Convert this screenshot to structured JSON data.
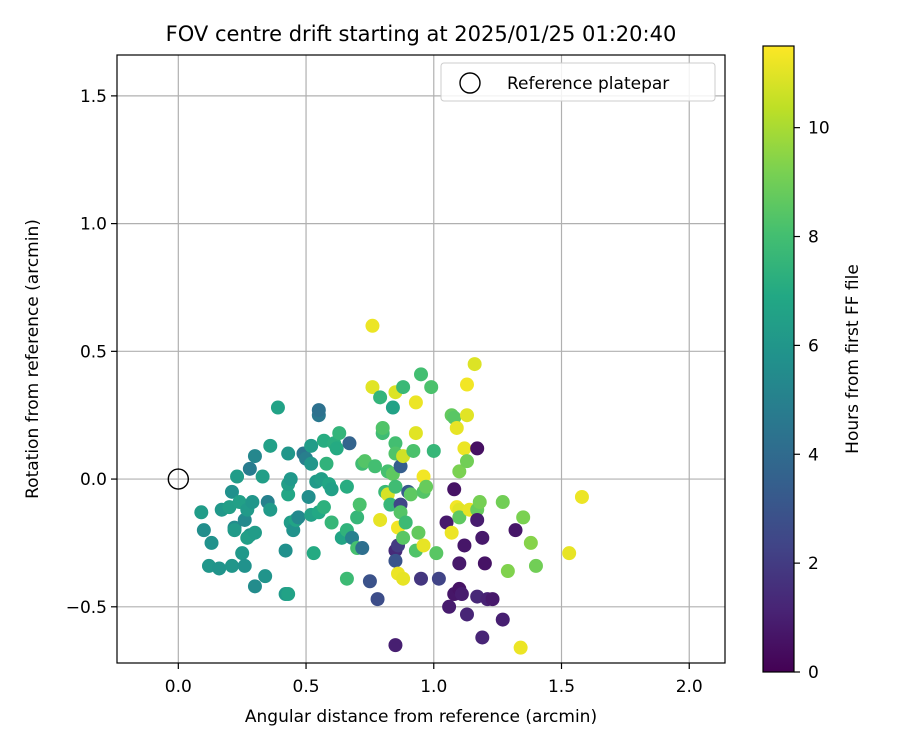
{
  "chart_data": {
    "type": "scatter",
    "title": "FOV centre drift starting at 2025/01/25 01:20:40",
    "xlabel": "Angular distance from reference (arcmin)",
    "ylabel": "Rotation from reference (arcmin)",
    "xlim": [
      -0.24,
      2.14
    ],
    "ylim": [
      -0.72,
      1.66
    ],
    "xticks": [
      0.0,
      0.5,
      1.0,
      1.5,
      2.0
    ],
    "xtick_labels": [
      "0.0",
      "0.5",
      "1.0",
      "1.5",
      "2.0"
    ],
    "yticks": [
      -0.5,
      0.0,
      0.5,
      1.0,
      1.5
    ],
    "ytick_labels": [
      "−0.5",
      "0.0",
      "0.5",
      "1.0",
      "1.5"
    ],
    "grid": true,
    "legend": {
      "placement": "top-right",
      "entries": [
        {
          "label": "Reference platepar",
          "marker": "open-circle"
        }
      ]
    },
    "reference_point": {
      "x": 0.0,
      "y": 0.0
    },
    "colorbar": {
      "label": "Hours from first FF file",
      "colormap": "viridis",
      "range": [
        0,
        11.5
      ],
      "ticks": [
        0,
        2,
        4,
        6,
        8,
        10
      ],
      "tick_labels": [
        "0",
        "2",
        "4",
        "6",
        "8",
        "10"
      ]
    },
    "points": [
      {
        "x": 0.09,
        "y": -0.13,
        "c": 6.3
      },
      {
        "x": 0.1,
        "y": -0.2,
        "c": 5.6
      },
      {
        "x": 0.13,
        "y": -0.25,
        "c": 5.8
      },
      {
        "x": 0.12,
        "y": -0.34,
        "c": 6.0
      },
      {
        "x": 0.16,
        "y": -0.35,
        "c": 5.9
      },
      {
        "x": 0.17,
        "y": -0.12,
        "c": 6.1
      },
      {
        "x": 0.21,
        "y": -0.05,
        "c": 5.7
      },
      {
        "x": 0.2,
        "y": -0.11,
        "c": 6.4
      },
      {
        "x": 0.22,
        "y": -0.19,
        "c": 5.5
      },
      {
        "x": 0.22,
        "y": -0.2,
        "c": 6.2
      },
      {
        "x": 0.21,
        "y": -0.34,
        "c": 6.0
      },
      {
        "x": 0.23,
        "y": 0.01,
        "c": 6.3
      },
      {
        "x": 0.24,
        "y": -0.09,
        "c": 6.5
      },
      {
        "x": 0.25,
        "y": -0.29,
        "c": 6.1
      },
      {
        "x": 0.26,
        "y": -0.16,
        "c": 5.4
      },
      {
        "x": 0.26,
        "y": -0.34,
        "c": 5.8
      },
      {
        "x": 0.27,
        "y": -0.12,
        "c": 6.2
      },
      {
        "x": 0.28,
        "y": 0.04,
        "c": 4.8
      },
      {
        "x": 0.28,
        "y": -0.22,
        "c": 5.9
      },
      {
        "x": 0.27,
        "y": -0.23,
        "c": 6.4
      },
      {
        "x": 0.29,
        "y": -0.09,
        "c": 6.0
      },
      {
        "x": 0.3,
        "y": -0.21,
        "c": 6.3
      },
      {
        "x": 0.3,
        "y": 0.09,
        "c": 5.3
      },
      {
        "x": 0.3,
        "y": -0.42,
        "c": 5.5
      },
      {
        "x": 0.33,
        "y": 0.01,
        "c": 6.4
      },
      {
        "x": 0.34,
        "y": -0.38,
        "c": 5.9
      },
      {
        "x": 0.35,
        "y": -0.09,
        "c": 5.0
      },
      {
        "x": 0.36,
        "y": -0.12,
        "c": 6.2
      },
      {
        "x": 0.36,
        "y": 0.13,
        "c": 6.5
      },
      {
        "x": 0.39,
        "y": 0.28,
        "c": 6.6
      },
      {
        "x": 0.42,
        "y": -0.28,
        "c": 5.7
      },
      {
        "x": 0.42,
        "y": -0.45,
        "c": 6.2
      },
      {
        "x": 0.43,
        "y": -0.06,
        "c": 6.8
      },
      {
        "x": 0.43,
        "y": -0.02,
        "c": 6.4
      },
      {
        "x": 0.43,
        "y": 0.1,
        "c": 6.0
      },
      {
        "x": 0.43,
        "y": -0.45,
        "c": 6.6
      },
      {
        "x": 0.44,
        "y": 0.0,
        "c": 6.1
      },
      {
        "x": 0.44,
        "y": -0.17,
        "c": 6.3
      },
      {
        "x": 0.45,
        "y": -0.2,
        "c": 5.8
      },
      {
        "x": 0.46,
        "y": -0.16,
        "c": 6.7
      },
      {
        "x": 0.47,
        "y": -0.15,
        "c": 5.4
      },
      {
        "x": 0.49,
        "y": 0.1,
        "c": 4.5
      },
      {
        "x": 0.5,
        "y": 0.08,
        "c": 4.9
      },
      {
        "x": 0.51,
        "y": -0.07,
        "c": 5.6
      },
      {
        "x": 0.52,
        "y": 0.13,
        "c": 6.3
      },
      {
        "x": 0.52,
        "y": -0.14,
        "c": 6.6
      },
      {
        "x": 0.52,
        "y": 0.06,
        "c": 6.0
      },
      {
        "x": 0.53,
        "y": -0.29,
        "c": 7.0
      },
      {
        "x": 0.54,
        "y": -0.01,
        "c": 6.2
      },
      {
        "x": 0.55,
        "y": 0.25,
        "c": 4.6
      },
      {
        "x": 0.55,
        "y": 0.27,
        "c": 4.3
      },
      {
        "x": 0.55,
        "y": -0.13,
        "c": 6.9
      },
      {
        "x": 0.56,
        "y": 0.0,
        "c": 6.4
      },
      {
        "x": 0.57,
        "y": 0.15,
        "c": 7.1
      },
      {
        "x": 0.57,
        "y": -0.11,
        "c": 7.3
      },
      {
        "x": 0.58,
        "y": 0.06,
        "c": 7.4
      },
      {
        "x": 0.59,
        "y": -0.02,
        "c": 6.8
      },
      {
        "x": 0.6,
        "y": -0.04,
        "c": 6.5
      },
      {
        "x": 0.6,
        "y": -0.17,
        "c": 7.6
      },
      {
        "x": 0.61,
        "y": 0.14,
        "c": 7.2
      },
      {
        "x": 0.62,
        "y": 0.12,
        "c": 7.0
      },
      {
        "x": 0.63,
        "y": 0.18,
        "c": 7.5
      },
      {
        "x": 0.64,
        "y": -0.23,
        "c": 6.7
      },
      {
        "x": 0.66,
        "y": -0.2,
        "c": 7.4
      },
      {
        "x": 0.66,
        "y": -0.39,
        "c": 7.8
      },
      {
        "x": 0.66,
        "y": -0.03,
        "c": 7.1
      },
      {
        "x": 0.67,
        "y": 0.14,
        "c": 3.7
      },
      {
        "x": 0.68,
        "y": -0.23,
        "c": 5.0
      },
      {
        "x": 0.7,
        "y": -0.15,
        "c": 7.6
      },
      {
        "x": 0.7,
        "y": -0.27,
        "c": 8.1
      },
      {
        "x": 0.71,
        "y": -0.1,
        "c": 8.2
      },
      {
        "x": 0.72,
        "y": -0.27,
        "c": 4.2
      },
      {
        "x": 0.72,
        "y": 0.06,
        "c": 7.9
      },
      {
        "x": 0.73,
        "y": 0.07,
        "c": 8.4
      },
      {
        "x": 0.75,
        "y": -0.4,
        "c": 2.9
      },
      {
        "x": 0.76,
        "y": 0.6,
        "c": 11.2
      },
      {
        "x": 0.76,
        "y": 0.36,
        "c": 11.0
      },
      {
        "x": 0.77,
        "y": 0.05,
        "c": 8.0
      },
      {
        "x": 0.78,
        "y": -0.47,
        "c": 2.7
      },
      {
        "x": 0.79,
        "y": -0.16,
        "c": 11.1
      },
      {
        "x": 0.79,
        "y": 0.32,
        "c": 7.5
      },
      {
        "x": 0.8,
        "y": 0.18,
        "c": 7.9
      },
      {
        "x": 0.8,
        "y": 0.2,
        "c": 8.3
      },
      {
        "x": 0.81,
        "y": -0.05,
        "c": 7.7
      },
      {
        "x": 0.82,
        "y": -0.06,
        "c": 10.8
      },
      {
        "x": 0.82,
        "y": 0.03,
        "c": 8.1
      },
      {
        "x": 0.83,
        "y": -0.1,
        "c": 7.6
      },
      {
        "x": 0.84,
        "y": 0.28,
        "c": 6.6
      },
      {
        "x": 0.84,
        "y": 0.02,
        "c": 8.6
      },
      {
        "x": 0.85,
        "y": -0.65,
        "c": 1.0
      },
      {
        "x": 0.85,
        "y": 0.34,
        "c": 10.9
      },
      {
        "x": 0.85,
        "y": -0.28,
        "c": 1.4
      },
      {
        "x": 0.85,
        "y": -0.32,
        "c": 3.0
      },
      {
        "x": 0.85,
        "y": 0.14,
        "c": 8.0
      },
      {
        "x": 0.85,
        "y": 0.1,
        "c": 8.3
      },
      {
        "x": 0.85,
        "y": -0.03,
        "c": 7.9
      },
      {
        "x": 0.86,
        "y": -0.19,
        "c": 11.3
      },
      {
        "x": 0.86,
        "y": -0.37,
        "c": 11.2
      },
      {
        "x": 0.86,
        "y": -0.26,
        "c": 2.0
      },
      {
        "x": 0.87,
        "y": -0.1,
        "c": 2.4
      },
      {
        "x": 0.87,
        "y": -0.13,
        "c": 8.4
      },
      {
        "x": 0.87,
        "y": 0.05,
        "c": 3.4
      },
      {
        "x": 0.88,
        "y": -0.23,
        "c": 8.5
      },
      {
        "x": 0.88,
        "y": -0.39,
        "c": 11.1
      },
      {
        "x": 0.88,
        "y": 0.36,
        "c": 7.7
      },
      {
        "x": 0.88,
        "y": 0.09,
        "c": 10.7
      },
      {
        "x": 0.89,
        "y": -0.17,
        "c": 7.8
      },
      {
        "x": 0.9,
        "y": -0.05,
        "c": 3.3
      },
      {
        "x": 0.91,
        "y": -0.06,
        "c": 8.6
      },
      {
        "x": 0.92,
        "y": 0.11,
        "c": 8.2
      },
      {
        "x": 0.93,
        "y": 0.3,
        "c": 11.2
      },
      {
        "x": 0.93,
        "y": 0.18,
        "c": 11.0
      },
      {
        "x": 0.93,
        "y": -0.28,
        "c": 8.3
      },
      {
        "x": 0.94,
        "y": -0.21,
        "c": 8.7
      },
      {
        "x": 0.95,
        "y": 0.41,
        "c": 8.0
      },
      {
        "x": 0.95,
        "y": -0.39,
        "c": 1.8
      },
      {
        "x": 0.96,
        "y": 0.01,
        "c": 11.3
      },
      {
        "x": 0.96,
        "y": -0.05,
        "c": 8.4
      },
      {
        "x": 0.96,
        "y": -0.26,
        "c": 11.1
      },
      {
        "x": 0.97,
        "y": -0.03,
        "c": 8.8
      },
      {
        "x": 0.99,
        "y": 0.36,
        "c": 8.2
      },
      {
        "x": 1.0,
        "y": 0.11,
        "c": 7.6
      },
      {
        "x": 1.01,
        "y": -0.29,
        "c": 8.5
      },
      {
        "x": 1.02,
        "y": -0.39,
        "c": 2.3
      },
      {
        "x": 1.05,
        "y": -0.17,
        "c": 0.8
      },
      {
        "x": 1.06,
        "y": -0.5,
        "c": 0.9
      },
      {
        "x": 1.07,
        "y": 0.25,
        "c": 8.7
      },
      {
        "x": 1.07,
        "y": -0.21,
        "c": 11.2
      },
      {
        "x": 1.08,
        "y": 0.24,
        "c": 8.5
      },
      {
        "x": 1.08,
        "y": -0.04,
        "c": 0.6
      },
      {
        "x": 1.08,
        "y": -0.45,
        "c": 0.7
      },
      {
        "x": 1.09,
        "y": -0.11,
        "c": 11.3
      },
      {
        "x": 1.09,
        "y": 0.2,
        "c": 11.1
      },
      {
        "x": 1.1,
        "y": -0.12,
        "c": 11.0
      },
      {
        "x": 1.1,
        "y": 0.03,
        "c": 9.2
      },
      {
        "x": 1.1,
        "y": -0.15,
        "c": 8.6
      },
      {
        "x": 1.1,
        "y": -0.33,
        "c": 0.8
      },
      {
        "x": 1.1,
        "y": -0.43,
        "c": 0.6
      },
      {
        "x": 1.11,
        "y": -0.45,
        "c": 0.9
      },
      {
        "x": 1.12,
        "y": -0.26,
        "c": 0.7
      },
      {
        "x": 1.12,
        "y": 0.12,
        "c": 11.2
      },
      {
        "x": 1.13,
        "y": 0.37,
        "c": 11.3
      },
      {
        "x": 1.13,
        "y": 0.25,
        "c": 11.0
      },
      {
        "x": 1.13,
        "y": 0.07,
        "c": 9.0
      },
      {
        "x": 1.13,
        "y": -0.53,
        "c": 1.2
      },
      {
        "x": 1.14,
        "y": -0.12,
        "c": 11.1
      },
      {
        "x": 1.16,
        "y": 0.45,
        "c": 10.9
      },
      {
        "x": 1.17,
        "y": -0.12,
        "c": 8.8
      },
      {
        "x": 1.17,
        "y": -0.16,
        "c": 0.9
      },
      {
        "x": 1.17,
        "y": 0.12,
        "c": 0.5
      },
      {
        "x": 1.17,
        "y": -0.46,
        "c": 1.3
      },
      {
        "x": 1.18,
        "y": -0.09,
        "c": 9.1
      },
      {
        "x": 1.19,
        "y": -0.23,
        "c": 0.8
      },
      {
        "x": 1.19,
        "y": -0.62,
        "c": 1.2
      },
      {
        "x": 1.2,
        "y": -0.33,
        "c": 0.6
      },
      {
        "x": 1.21,
        "y": -0.47,
        "c": 1.1
      },
      {
        "x": 1.23,
        "y": -0.47,
        "c": 0.8
      },
      {
        "x": 1.27,
        "y": -0.09,
        "c": 9.0
      },
      {
        "x": 1.27,
        "y": -0.55,
        "c": 1.0
      },
      {
        "x": 1.29,
        "y": -0.36,
        "c": 9.3
      },
      {
        "x": 1.32,
        "y": -0.2,
        "c": 0.7
      },
      {
        "x": 1.34,
        "y": -0.66,
        "c": 11.2
      },
      {
        "x": 1.35,
        "y": -0.15,
        "c": 9.2
      },
      {
        "x": 1.38,
        "y": -0.25,
        "c": 9.4
      },
      {
        "x": 1.4,
        "y": -0.34,
        "c": 9.0
      },
      {
        "x": 1.53,
        "y": -0.29,
        "c": 11.1
      },
      {
        "x": 1.58,
        "y": -0.07,
        "c": 11.2
      }
    ]
  }
}
